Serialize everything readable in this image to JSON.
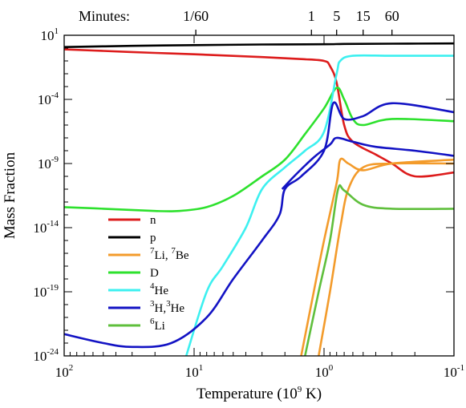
{
  "chart_data": {
    "type": "line",
    "xlabel_main": "Temperature (10",
    "xlabel_sup": "9",
    "xlabel_tail": " K)",
    "ylabel": "Mass Fraction",
    "x_scale": "log",
    "x_reversed": true,
    "xlim": [
      100,
      0.1
    ],
    "y_scale": "log",
    "ylim": [
      1e-24,
      10
    ],
    "x_ticks": [
      {
        "base": "10",
        "exp": "2"
      },
      {
        "base": "10",
        "exp": "1"
      },
      {
        "base": "10",
        "exp": "0"
      },
      {
        "base": "10",
        "exp": "-1"
      }
    ],
    "y_ticks": [
      {
        "base": "10",
        "exp": "1"
      },
      {
        "base": "10",
        "exp": "-4"
      },
      {
        "base": "10",
        "exp": "-9"
      },
      {
        "base": "10",
        "exp": "-14"
      },
      {
        "base": "10",
        "exp": "-19"
      },
      {
        "base": "10",
        "exp": "-24"
      }
    ],
    "top_axis": {
      "title": "Minutes:",
      "ticks": [
        {
          "label": "1/60",
          "temperature": 9.7
        },
        {
          "label": "1",
          "temperature": 1.25
        },
        {
          "label": "5",
          "temperature": 0.8
        },
        {
          "label": "15",
          "temperature": 0.5
        },
        {
          "label": "60",
          "temperature": 0.3
        }
      ]
    },
    "legend_position": "left-center",
    "series": [
      {
        "key": "n",
        "color": "#dd1c1c",
        "legend": [
          {
            "t": "n"
          }
        ],
        "points": [
          [
            100,
            0.8
          ],
          [
            50,
            0.6
          ],
          [
            20,
            0.42
          ],
          [
            10,
            0.33
          ],
          [
            3,
            0.2
          ],
          [
            1.5,
            0.14
          ],
          [
            1.0,
            0.1
          ],
          [
            0.9,
            0.04
          ],
          [
            0.8,
            0.002
          ],
          [
            0.7,
            1e-06
          ],
          [
            0.6,
            5e-08
          ],
          [
            0.4,
            5e-09
          ],
          [
            0.3,
            1e-09
          ],
          [
            0.2,
            1e-10
          ],
          [
            0.1,
            2e-10
          ]
        ]
      },
      {
        "key": "p",
        "color": "#000000",
        "legend": [
          {
            "t": "p"
          }
        ],
        "points": [
          [
            100,
            1.2
          ],
          [
            30,
            1.5
          ],
          [
            10,
            1.7
          ],
          [
            3,
            1.9
          ],
          [
            1,
            2.0
          ],
          [
            0.7,
            2.1
          ],
          [
            0.3,
            2.2
          ],
          [
            0.1,
            2.3
          ]
        ]
      },
      {
        "key": "Li7Be7",
        "color": "#f39b2b",
        "legend": [
          {
            "t": "7",
            "sup": true
          },
          {
            "t": "Li, "
          },
          {
            "t": "7",
            "sup": true
          },
          {
            "t": "Be"
          }
        ],
        "points": [
          [
            1.5,
            1e-24
          ],
          [
            1.2,
            1e-19
          ],
          [
            1.0,
            1e-15
          ],
          [
            0.8,
            3e-11
          ],
          [
            0.75,
            2e-09
          ],
          [
            0.65,
            1e-09
          ],
          [
            0.5,
            3e-10
          ],
          [
            0.3,
            1e-09
          ],
          [
            0.1,
            2e-09
          ]
        ],
        "points2": [
          [
            1.1,
            1e-24
          ],
          [
            0.9,
            1e-19
          ],
          [
            0.75,
            1e-14
          ],
          [
            0.65,
            1e-11
          ],
          [
            0.5,
            5e-10
          ],
          [
            0.3,
            1e-09
          ],
          [
            0.1,
            1e-09
          ]
        ]
      },
      {
        "key": "D",
        "color": "#2de12d",
        "legend": [
          {
            "t": "D"
          }
        ],
        "points": [
          [
            100,
            4e-13
          ],
          [
            50,
            3e-13
          ],
          [
            20,
            2e-13
          ],
          [
            13,
            2e-13
          ],
          [
            8,
            4e-13
          ],
          [
            5,
            3e-12
          ],
          [
            3,
            1e-10
          ],
          [
            2,
            2e-09
          ],
          [
            1.4,
            2e-07
          ],
          [
            1.0,
            2e-05
          ],
          [
            0.8,
            0.0008
          ],
          [
            0.7,
            0.0001
          ],
          [
            0.6,
            3e-06
          ],
          [
            0.5,
            1e-06
          ],
          [
            0.3,
            3e-06
          ],
          [
            0.1,
            2e-06
          ]
        ]
      },
      {
        "key": "He4",
        "color": "#3df0f0",
        "legend": [
          {
            "t": "4",
            "sup": true
          },
          {
            "t": "He"
          }
        ],
        "points": [
          [
            11.5,
            1e-24
          ],
          [
            8,
            1e-19
          ],
          [
            6,
            1e-17
          ],
          [
            4,
            1e-14
          ],
          [
            3,
            1e-11
          ],
          [
            2,
            5e-10
          ],
          [
            1.4,
            1e-08
          ],
          [
            1.0,
            3e-07
          ],
          [
            0.8,
            0.01
          ],
          [
            0.75,
            0.1
          ],
          [
            0.6,
            0.25
          ],
          [
            0.3,
            0.25
          ],
          [
            0.1,
            0.25
          ]
        ]
      },
      {
        "key": "H3He3",
        "color": "#1313c4",
        "legend": [
          {
            "t": "3",
            "sup": true
          },
          {
            "t": "H,"
          },
          {
            "t": "3",
            "sup": true
          },
          {
            "t": "He"
          }
        ],
        "points": [
          [
            100,
            5e-23
          ],
          [
            50,
            1e-23
          ],
          [
            30,
            5e-24
          ],
          [
            15,
            1e-23
          ],
          [
            8,
            1e-21
          ],
          [
            5,
            1e-18
          ],
          [
            3,
            1e-15
          ],
          [
            2.2,
            1e-13
          ],
          [
            2.0,
            1e-11
          ],
          [
            1.5,
            1e-10
          ],
          [
            1.0,
            1e-08
          ],
          [
            0.85,
            5e-05
          ],
          [
            0.7,
            3e-06
          ],
          [
            0.5,
            5e-06
          ],
          [
            0.3,
            5e-05
          ],
          [
            0.1,
            1e-05
          ]
        ],
        "points2": [
          [
            2.1,
            1e-11
          ],
          [
            1.7,
            1e-10
          ],
          [
            1.2,
            3e-09
          ],
          [
            0.9,
            3e-08
          ],
          [
            0.8,
            1e-07
          ],
          [
            0.6,
            5e-08
          ],
          [
            0.4,
            2e-08
          ],
          [
            0.2,
            1e-08
          ],
          [
            0.1,
            4e-09
          ]
        ]
      },
      {
        "key": "Li6",
        "color": "#5fbf3c",
        "legend": [
          {
            "t": "6",
            "sup": true
          },
          {
            "t": "Li"
          }
        ],
        "points": [
          [
            1.4,
            1e-24
          ],
          [
            1.1,
            1e-19
          ],
          [
            0.9,
            1e-15
          ],
          [
            0.78,
            1e-11
          ],
          [
            0.7,
            8e-12
          ],
          [
            0.5,
            6e-13
          ],
          [
            0.3,
            3e-13
          ],
          [
            0.1,
            3e-13
          ]
        ]
      }
    ]
  }
}
